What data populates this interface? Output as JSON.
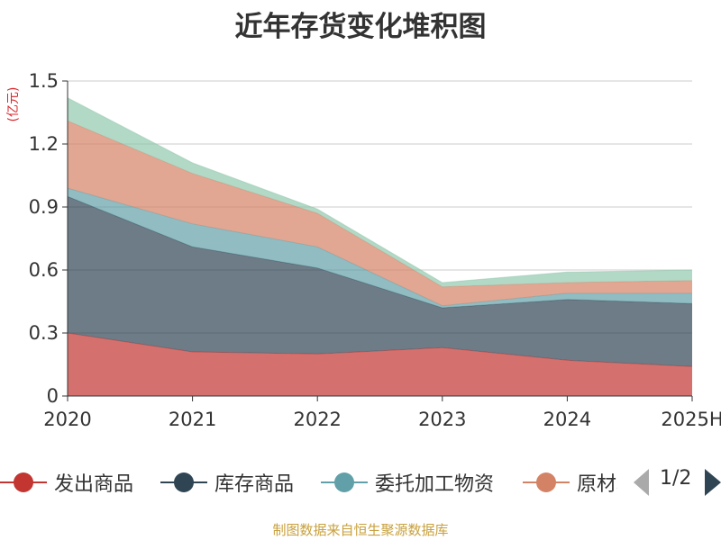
{
  "title": "近年存货变化堆积图",
  "unit_label": "(亿元)",
  "source": "制图数据来自恒生聚源数据库",
  "pager": {
    "text": "1/2"
  },
  "colors": {
    "grid": "#cccccc",
    "axis": "#333333",
    "unit": "#d9262c",
    "pager_inactive": "#aaaaaa",
    "pager_active": "#2f4554"
  },
  "chart_data": {
    "type": "area",
    "stacked": true,
    "categories": [
      "2020",
      "2021",
      "2022",
      "2023",
      "2024",
      "2025H"
    ],
    "ylabel": "(亿元)",
    "ylim": [
      0,
      1.5
    ],
    "yticks": [
      "0",
      "0.3",
      "0.6",
      "0.9",
      "1.2",
      "1.5"
    ],
    "grid": true,
    "legend_position": "bottom",
    "series": [
      {
        "name": "发出商品",
        "color": "#c23531",
        "line_color": "#c23531",
        "values": [
          0.3,
          0.21,
          0.2,
          0.23,
          0.17,
          0.14
        ]
      },
      {
        "name": "库存商品",
        "color": "#2f4554",
        "line_color": "#2f4554",
        "values": [
          0.65,
          0.5,
          0.41,
          0.19,
          0.29,
          0.3
        ]
      },
      {
        "name": "委托加工物资",
        "color": "#61a0a8",
        "line_color": "#61a0a8",
        "values": [
          0.04,
          0.11,
          0.1,
          0.01,
          0.03,
          0.05
        ]
      },
      {
        "name": "原材料",
        "color": "#d48265",
        "line_color": "#d48265",
        "values": [
          0.32,
          0.24,
          0.16,
          0.09,
          0.05,
          0.06
        ]
      },
      {
        "color": "#91c7ae",
        "line_color": "#91c7ae",
        "values": [
          0.11,
          0.05,
          0.02,
          0.02,
          0.05,
          0.05
        ]
      }
    ]
  }
}
